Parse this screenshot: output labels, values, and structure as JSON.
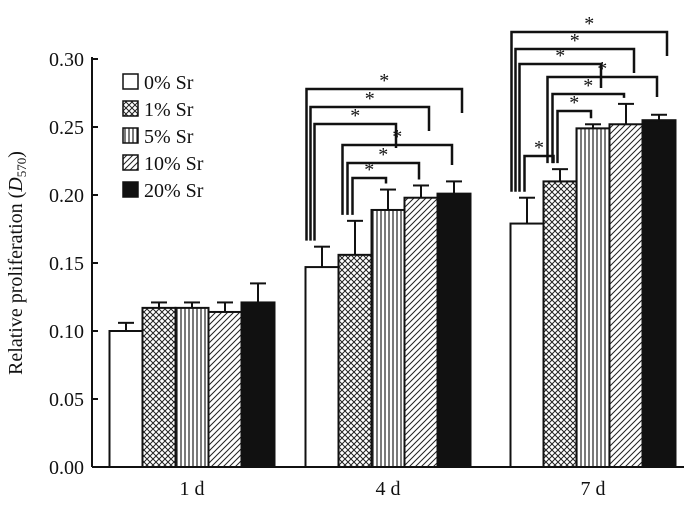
{
  "chart_data": {
    "type": "bar",
    "title": "",
    "xlabel": "",
    "ylabel": "Relative proliferation (D570)",
    "ylabel_parts": {
      "text": "Relative proliferation (",
      "italic": "D",
      "sub": "570",
      "close": ")"
    },
    "ylim": [
      0,
      0.3
    ],
    "yticks": [
      "0.00",
      "0.05",
      "0.10",
      "0.15",
      "0.20",
      "0.25",
      "0.30"
    ],
    "categories": [
      "1 d",
      "4 d",
      "7 d"
    ],
    "legend_position": "top-left",
    "series": [
      {
        "name": "0% Sr",
        "pattern": "white",
        "values": [
          0.1,
          0.147,
          0.179
        ],
        "errors": [
          0.006,
          0.015,
          0.019
        ]
      },
      {
        "name": "1% Sr",
        "pattern": "crosshatch",
        "values": [
          0.117,
          0.156,
          0.21
        ],
        "errors": [
          0.004,
          0.025,
          0.009
        ]
      },
      {
        "name": "5% Sr",
        "pattern": "vertical",
        "values": [
          0.117,
          0.189,
          0.249
        ],
        "errors": [
          0.004,
          0.015,
          0.003
        ]
      },
      {
        "name": "10% Sr",
        "pattern": "diagonal",
        "values": [
          0.114,
          0.198,
          0.252
        ],
        "errors": [
          0.007,
          0.009,
          0.015
        ]
      },
      {
        "name": "20% Sr",
        "pattern": "black",
        "values": [
          0.121,
          0.201,
          0.255
        ],
        "errors": [
          0.014,
          0.009,
          0.004
        ]
      }
    ],
    "significance_marker": "*",
    "significance": [
      {
        "group": 1,
        "pairs": [
          [
            1,
            2
          ],
          [
            1,
            3
          ],
          [
            1,
            4
          ],
          [
            0,
            2
          ],
          [
            0,
            3
          ],
          [
            0,
            4
          ]
        ]
      },
      {
        "group": 2,
        "pairs": [
          [
            0,
            1
          ],
          [
            1,
            2
          ],
          [
            1,
            3
          ],
          [
            1,
            4
          ],
          [
            0,
            2
          ],
          [
            0,
            3
          ],
          [
            0,
            4
          ]
        ]
      }
    ]
  }
}
